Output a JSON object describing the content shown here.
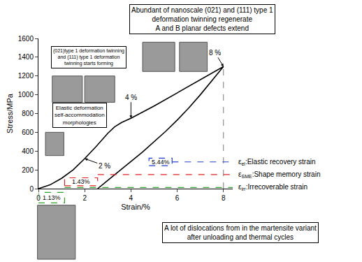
{
  "chart_data": {
    "type": "line",
    "x_label": "Strain/%",
    "y_label": "Stress/MPa",
    "xlim": [
      0,
      8.4
    ],
    "xticks": [
      0,
      2,
      4,
      6,
      8
    ],
    "ylim": [
      0,
      1600
    ],
    "yticks": [
      0,
      200,
      400,
      600,
      800,
      1000,
      1200,
      1400,
      1600
    ],
    "grid": false,
    "series": [
      {
        "color": "#000000",
        "line_style": "solid",
        "x": [
          0,
          0.5,
          1,
          1.5,
          2,
          2.5,
          3,
          3.3,
          3.6,
          4,
          5,
          6,
          7,
          8
        ],
        "values": [
          0,
          40,
          110,
          200,
          320,
          450,
          590,
          660,
          705,
          750,
          880,
          1020,
          1160,
          1300
        ]
      },
      {
        "color": "#000000",
        "line_style": "solid",
        "x": [
          8,
          7.5,
          7,
          6.5,
          6,
          5.5,
          5,
          4.5,
          4,
          3.5,
          3,
          2.56
        ],
        "values": [
          1300,
          1150,
          1000,
          860,
          730,
          610,
          500,
          390,
          290,
          190,
          90,
          0
        ]
      }
    ],
    "strain_callouts": [
      {
        "text": "2 %",
        "x": 2,
        "y": 320
      },
      {
        "text": "4 %",
        "x": 4,
        "y": 750
      },
      {
        "text": "8 %",
        "x": 8,
        "y": 1300
      }
    ],
    "strain_components": [
      {
        "value": 1.13,
        "label": "1.13%",
        "color": "#2ca02c",
        "symbol": "ε",
        "subscript": "irr",
        "description": ":Irrecoverable strain"
      },
      {
        "value": 1.43,
        "label": "1.43%",
        "color": "#e02020",
        "symbol": "ε",
        "subscript": "SME",
        "description": ":Shape memory strain"
      },
      {
        "value": 5.44,
        "label": "5.44%",
        "color": "#2040d0",
        "symbol": "ε",
        "subscript": "el",
        "description": ":Elastic recovery strain"
      }
    ],
    "notes": {
      "top": [
        "Abundant of nanoscale (021) and (111) type 1",
        "deformation twinning regenerate",
        "A and B planar defects extend"
      ],
      "twinning_start": [
        "(021)type 1 deformation twinning",
        "and (111) type 1 deformation",
        "twinning starts forming"
      ],
      "elastic": [
        "Elastic deformation",
        "self-accommodation",
        "morphologies"
      ],
      "bottom": [
        "A lot of dislocations from in the martensite variant",
        "after unloading and thermal cycles"
      ]
    }
  }
}
